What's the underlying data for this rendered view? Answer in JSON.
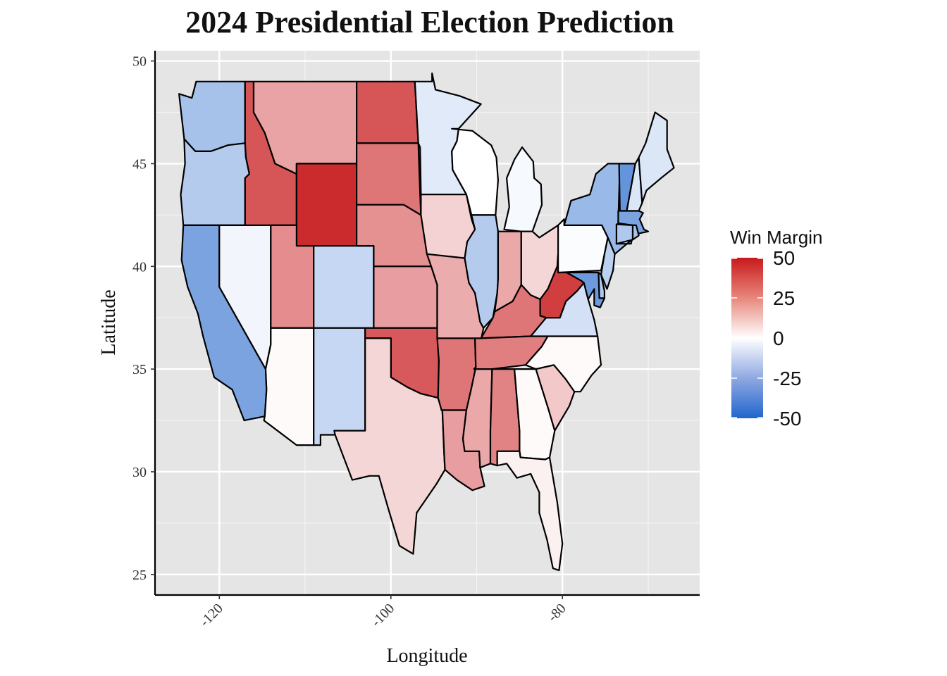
{
  "chart_data": {
    "type": "choropleth",
    "title": "2024 Presidential Election Prediction",
    "xlabel": "Longitude",
    "ylabel": "Latitude",
    "xlim": [
      -127.5,
      -64
    ],
    "ylim": [
      24,
      50.5
    ],
    "x_ticks": [
      -120,
      -100,
      -80
    ],
    "y_ticks": [
      25,
      30,
      35,
      40,
      45,
      50
    ],
    "grid": true,
    "legend": {
      "title": "Win Margin",
      "position": "right",
      "ticks": [
        50,
        25,
        0,
        -25,
        -50
      ],
      "range": [
        -50,
        50
      ],
      "colors": {
        "low": "#2166cc",
        "mid": "#ffffff",
        "high": "#c8191c"
      }
    },
    "states": [
      {
        "code": "WA",
        "margin": -20
      },
      {
        "code": "OR",
        "margin": -17
      },
      {
        "code": "CA",
        "margin": -30
      },
      {
        "code": "NV",
        "margin": -3
      },
      {
        "code": "ID",
        "margin": 37
      },
      {
        "code": "MT",
        "margin": 20
      },
      {
        "code": "WY",
        "margin": 46
      },
      {
        "code": "UT",
        "margin": 25
      },
      {
        "code": "AZ",
        "margin": 1
      },
      {
        "code": "CO",
        "margin": -13
      },
      {
        "code": "NM",
        "margin": -13
      },
      {
        "code": "ND",
        "margin": 37
      },
      {
        "code": "SD",
        "margin": 30
      },
      {
        "code": "NE",
        "margin": 24
      },
      {
        "code": "KS",
        "margin": 21
      },
      {
        "code": "OK",
        "margin": 36
      },
      {
        "code": "TX",
        "margin": 9
      },
      {
        "code": "MN",
        "margin": -7
      },
      {
        "code": "IA",
        "margin": 10
      },
      {
        "code": "MO",
        "margin": 18
      },
      {
        "code": "AR",
        "margin": 30
      },
      {
        "code": "LA",
        "margin": 21
      },
      {
        "code": "WI",
        "margin": 0
      },
      {
        "code": "IL",
        "margin": -17
      },
      {
        "code": "MI",
        "margin": -2
      },
      {
        "code": "IN",
        "margin": 19
      },
      {
        "code": "OH",
        "margin": 9
      },
      {
        "code": "KY",
        "margin": 30
      },
      {
        "code": "TN",
        "margin": 28
      },
      {
        "code": "MS",
        "margin": 19
      },
      {
        "code": "AL",
        "margin": 27
      },
      {
        "code": "GA",
        "margin": 1
      },
      {
        "code": "FL",
        "margin": 3
      },
      {
        "code": "SC",
        "margin": 12
      },
      {
        "code": "NC",
        "margin": 1
      },
      {
        "code": "VA",
        "margin": -10
      },
      {
        "code": "WV",
        "margin": 42
      },
      {
        "code": "PA",
        "margin": -1
      },
      {
        "code": "NY",
        "margin": -23
      },
      {
        "code": "VT",
        "margin": -35
      },
      {
        "code": "NH",
        "margin": -8
      },
      {
        "code": "ME",
        "margin": -8
      },
      {
        "code": "MA",
        "margin": -30
      },
      {
        "code": "CT",
        "margin": -18
      },
      {
        "code": "RI",
        "margin": -20
      },
      {
        "code": "NJ",
        "margin": -15
      },
      {
        "code": "DE",
        "margin": -18
      },
      {
        "code": "MD",
        "margin": -33
      }
    ]
  }
}
